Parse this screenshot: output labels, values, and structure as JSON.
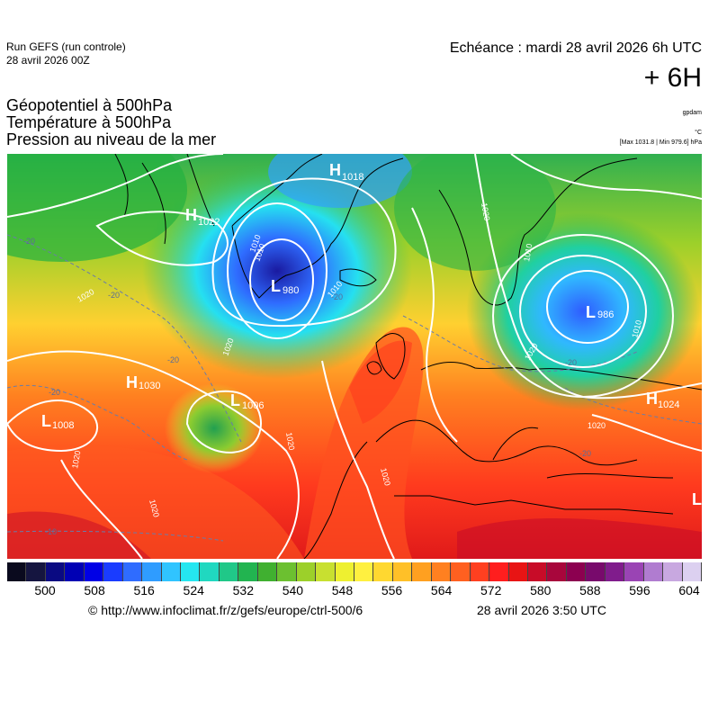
{
  "run": {
    "name": "Run GEFS (run controle)",
    "date": "28 avril 2026 00Z"
  },
  "echeance": {
    "label": "Echéance : mardi 28 avril 2026 6h UTC",
    "offset": "+ 6H"
  },
  "parameters": [
    "Géopotentiel à 500hPa",
    "Température à 500hPa",
    "Pression au niveau de la mer"
  ],
  "units": {
    "geopotential": "gpdam",
    "temperature": "°C",
    "pressure_range": "[Max 1031.8 | Min 979.6] hPa"
  },
  "colorscale": {
    "labels": [
      "500",
      "508",
      "516",
      "524",
      "532",
      "540",
      "548",
      "556",
      "564",
      "572",
      "580",
      "588",
      "596",
      "604"
    ],
    "colors": [
      "#0a0a1e",
      "#151540",
      "#0a0a82",
      "#0000b4",
      "#0000e6",
      "#1a3cff",
      "#2f6cff",
      "#2f9cff",
      "#30c4ff",
      "#25e6f0",
      "#20d8c0",
      "#20c888",
      "#22b450",
      "#40b030",
      "#6cc030",
      "#9cd02a",
      "#c8e030",
      "#eef030",
      "#fff040",
      "#ffd830",
      "#ffc028",
      "#ffa020",
      "#ff8020",
      "#ff6020",
      "#ff4020",
      "#ff1e1e",
      "#e81414",
      "#c80c28",
      "#a8063c",
      "#8c0050",
      "#780a6c",
      "#801c8c",
      "#9a44b4",
      "#b07cd0",
      "#c8a8e0",
      "#dcd0f0"
    ]
  },
  "pressure_centers": [
    {
      "type": "H",
      "value": "1018"
    },
    {
      "type": "H",
      "value": "1022"
    },
    {
      "type": "L",
      "value": "980"
    },
    {
      "type": "L",
      "value": "986"
    },
    {
      "type": "H",
      "value": "1030"
    },
    {
      "type": "L",
      "value": "1006"
    },
    {
      "type": "L",
      "value": "1008"
    },
    {
      "type": "H",
      "value": "1024"
    },
    {
      "type": "L",
      "value": ""
    }
  ],
  "isobar_labels": [
    "1020",
    "1010",
    "1020",
    "1010",
    "1010",
    "1020",
    "1020",
    "1020",
    "1020",
    "1020",
    "1010",
    "1010",
    "1020",
    "1020"
  ],
  "temperature_labels": [
    "-20",
    "-20",
    "-20",
    "-20",
    "-20",
    "-10",
    "-20",
    "-20"
  ],
  "footer": {
    "copyright": "© http://www.infoclimat.fr/z/gefs/europe/ctrl-500/6",
    "generated": "28 avril 2026  3:50 UTC"
  },
  "colors": {
    "isobar": "#ffffff",
    "isotherm": "#6a7ca8",
    "coastline": "#000000"
  }
}
